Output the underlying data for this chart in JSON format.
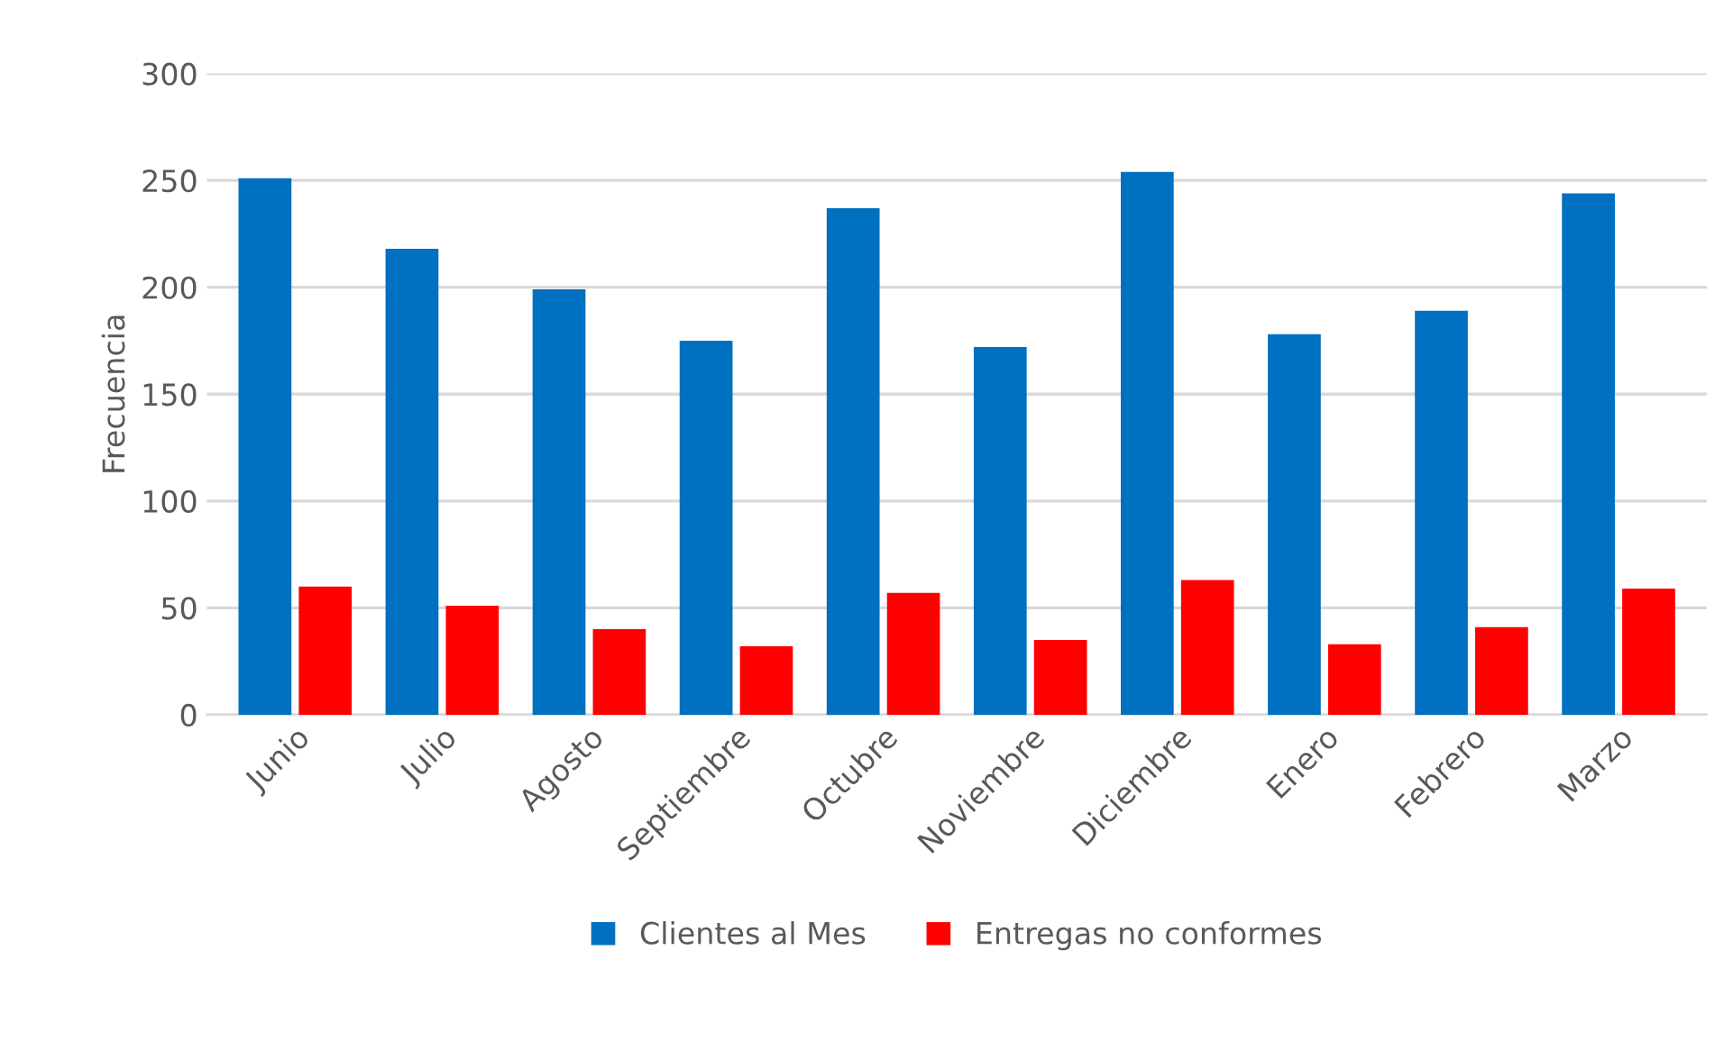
{
  "chart_data": {
    "type": "bar",
    "ylabel": "Frecuencia",
    "categories": [
      "Junio",
      "Julio",
      "Agosto",
      "Septiembre",
      "Octubre",
      "Noviembre",
      "Diciembre",
      "Enero",
      "Febrero",
      "Marzo"
    ],
    "series": [
      {
        "name": "Clientes al Mes",
        "color": "#0070c0",
        "values": [
          251,
          218,
          199,
          175,
          237,
          172,
          254,
          178,
          189,
          244
        ]
      },
      {
        "name": "Entregas no conformes",
        "color": "#ff0000",
        "values": [
          60,
          51,
          40,
          32,
          57,
          35,
          63,
          33,
          41,
          59
        ]
      }
    ],
    "ylim": [
      0,
      300
    ],
    "yticks": [
      0,
      50,
      100,
      150,
      200,
      250,
      300
    ],
    "grid": "y",
    "legend": "bottom"
  }
}
